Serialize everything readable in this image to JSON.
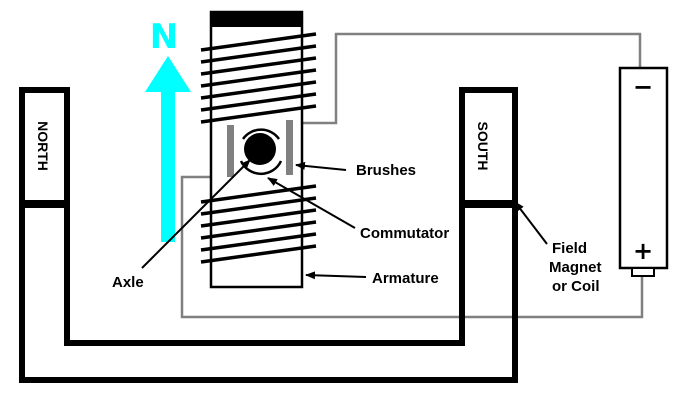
{
  "labels": {
    "north_arrow": "N",
    "north_pole": "NORTH",
    "south_pole": "SOUTH",
    "brushes": "Brushes",
    "commutator": "Commutator",
    "axle": "Axle",
    "armature": "Armature",
    "field_coil_line1": "Field",
    "field_coil_line2": "Magnet",
    "field_coil_line3": "or Coil",
    "battery_negative": "−",
    "battery_positive": "+"
  },
  "colors": {
    "arrow": "#00ffff",
    "wire": "#808080",
    "magnet": "#000000",
    "brush": "#808080"
  }
}
